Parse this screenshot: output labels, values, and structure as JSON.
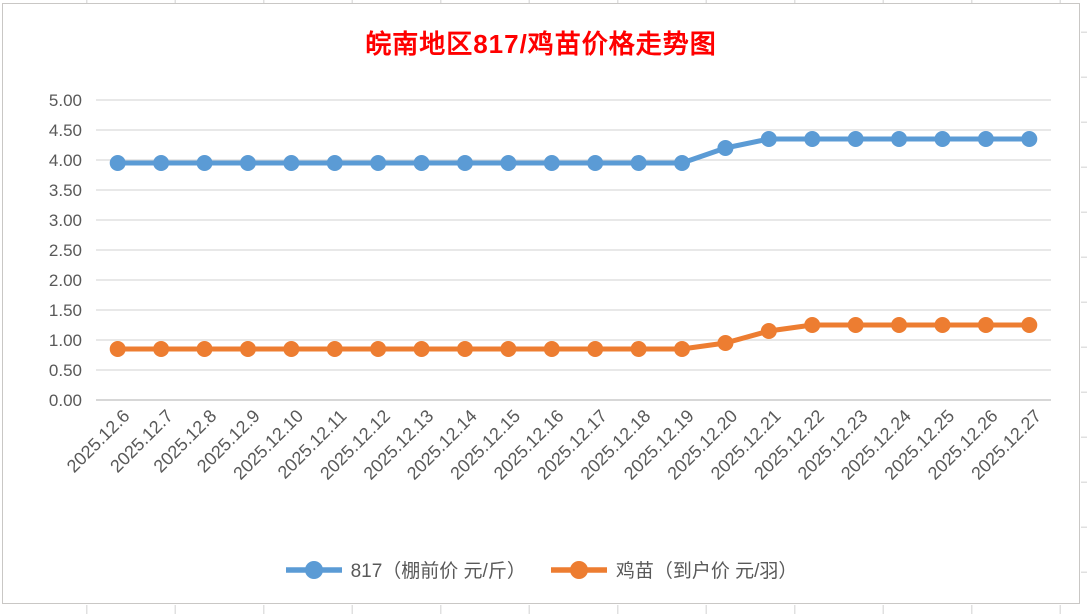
{
  "chart_data": {
    "type": "line",
    "title": "皖南地区817/鸡苗价格走势图",
    "title_color": "#FF0000",
    "categories": [
      "2025.12.6",
      "2025.12.7",
      "2025.12.8",
      "2025.12.9",
      "2025.12.10",
      "2025.12.11",
      "2025.12.12",
      "2025.12.13",
      "2025.12.14",
      "2025.12.15",
      "2025.12.16",
      "2025.12.17",
      "2025.12.18",
      "2025.12.19",
      "2025.12.20",
      "2025.12.21",
      "2025.12.22",
      "2025.12.23",
      "2025.12.24",
      "2025.12.25",
      "2025.12.26",
      "2025.12.27"
    ],
    "series": [
      {
        "name": "817（棚前价 元/斤）",
        "color": "#5B9BD5",
        "values": [
          3.95,
          3.95,
          3.95,
          3.95,
          3.95,
          3.95,
          3.95,
          3.95,
          3.95,
          3.95,
          3.95,
          3.95,
          3.95,
          3.95,
          4.2,
          4.35,
          4.35,
          4.35,
          4.35,
          4.35,
          4.35,
          4.35
        ]
      },
      {
        "name": "鸡苗（到户价 元/羽）",
        "color": "#ED7D31",
        "values": [
          0.85,
          0.85,
          0.85,
          0.85,
          0.85,
          0.85,
          0.85,
          0.85,
          0.85,
          0.85,
          0.85,
          0.85,
          0.85,
          0.85,
          0.95,
          1.15,
          1.25,
          1.25,
          1.25,
          1.25,
          1.25,
          1.25
        ]
      }
    ],
    "ylim": [
      0,
      5
    ],
    "ytick_step": 0.5,
    "ytick_labels": [
      "0.00",
      "0.50",
      "1.00",
      "1.50",
      "2.00",
      "2.50",
      "3.00",
      "3.50",
      "4.00",
      "4.50",
      "5.00"
    ],
    "grid": true,
    "legend_position": "bottom",
    "axis_label_color": "#595959",
    "gridline_color": "#D9D9D9",
    "baseline_color": "#BFBFBF",
    "marker": "circle",
    "line_width": 5,
    "marker_radius": 8
  }
}
